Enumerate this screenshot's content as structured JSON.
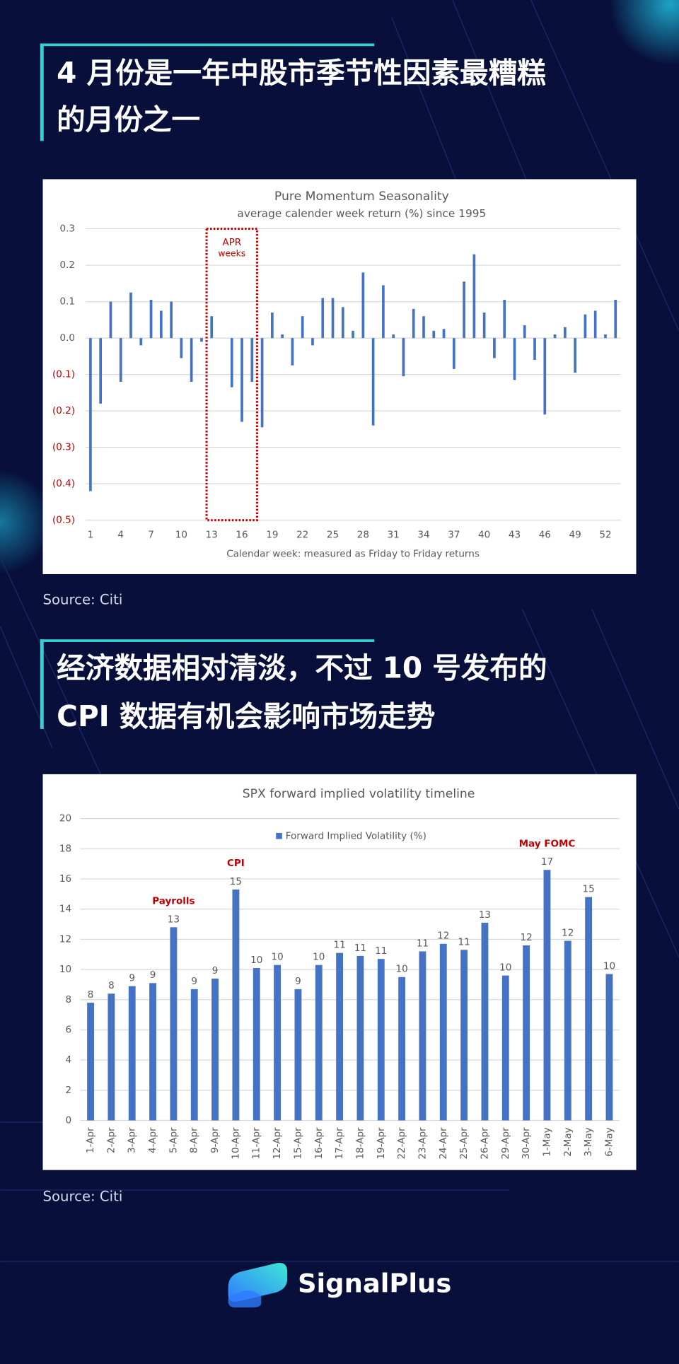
{
  "sections": [
    {
      "title": [
        "4 月份是一年中股市季节性因素最糟糕",
        "的月份之一"
      ],
      "source": "Source: Citi"
    },
    {
      "title": [
        "经济数据相对清淡，不过 10 号发布的",
        "CPI 数据有机会影响市场走势"
      ],
      "source": "Source: Citi"
    }
  ],
  "chart_data": [
    {
      "type": "bar",
      "title": "Pure Momentum Seasonality",
      "subtitle": "average calender week return (%) since 1995",
      "x_label": "Calendar week: measured as Friday to Friday returns",
      "categories": [
        1,
        null,
        null,
        4,
        null,
        null,
        7,
        null,
        null,
        10,
        null,
        null,
        13,
        null,
        null,
        16,
        null,
        null,
        19,
        null,
        null,
        22,
        null,
        null,
        25,
        null,
        null,
        28,
        null,
        null,
        31,
        null,
        null,
        34,
        null,
        null,
        37,
        null,
        null,
        40,
        null,
        null,
        43,
        null,
        null,
        46,
        null,
        null,
        49,
        null,
        null,
        52,
        null
      ],
      "values": [
        -0.42,
        -0.18,
        0.1,
        -0.12,
        0.125,
        -0.02,
        0.105,
        0.075,
        0.1,
        -0.055,
        -0.12,
        -0.01,
        0.06,
        0,
        -0.135,
        -0.23,
        -0.12,
        -0.245,
        0.07,
        0.01,
        -0.075,
        0.06,
        -0.02,
        0.11,
        0.11,
        0.085,
        0.02,
        0.18,
        -0.24,
        0.145,
        0.01,
        -0.105,
        0.08,
        0.06,
        0.02,
        0.025,
        -0.085,
        0.155,
        0.23,
        0.07,
        -0.055,
        0.105,
        -0.115,
        0.035,
        -0.06,
        -0.21,
        0.01,
        0.03,
        -0.095,
        0.065,
        0.075,
        0.01,
        0.105
      ],
      "color": "#4472c4",
      "ylim": [
        -0.5,
        0.3
      ],
      "yticks": [
        {
          "value": -0.5,
          "label": "(0.5)"
        },
        {
          "value": -0.4,
          "label": "(0.4)"
        },
        {
          "value": -0.3,
          "label": "(0.3)"
        },
        {
          "value": -0.2,
          "label": "(0.2)"
        },
        {
          "value": -0.1,
          "label": "(0.1)"
        },
        {
          "value": 0,
          "label": "0.0"
        },
        0.1,
        0.2,
        0.3
      ],
      "grid": true,
      "highlight": {
        "label": [
          "APR",
          "weeks"
        ],
        "from": 13,
        "to": 17,
        "color": "#c00000"
      }
    },
    {
      "type": "bar",
      "title": "SPX forward implied volatility timeline",
      "categories": [
        "1-Apr",
        "2-Apr",
        "3-Apr",
        "4-Apr",
        "5-Apr",
        "8-Apr",
        "9-Apr",
        "10-Apr",
        "11-Apr",
        "12-Apr",
        "15-Apr",
        "16-Apr",
        "17-Apr",
        "18-Apr",
        "19-Apr",
        "22-Apr",
        "23-Apr",
        "24-Apr",
        "25-Apr",
        "26-Apr",
        "29-Apr",
        "30-Apr",
        "1-May",
        "2-May",
        "3-May",
        "6-May"
      ],
      "series": [
        {
          "name": "Forward Implied Volatility (%)",
          "color": "#4472c4",
          "values": [
            7.8,
            8.4,
            8.9,
            9.1,
            12.8,
            8.7,
            9.4,
            15.3,
            10.1,
            10.3,
            8.7,
            10.3,
            11.1,
            10.9,
            10.7,
            9.5,
            11.2,
            11.7,
            11.3,
            13.1,
            9.6,
            11.6,
            16.6,
            11.9,
            14.8,
            9.7
          ],
          "value_labels": [
            "8",
            "8",
            "9",
            "9",
            "13",
            "9",
            "9",
            "15",
            "10",
            "10",
            "9",
            "10",
            "11",
            "11",
            "11",
            "10",
            "11",
            "12",
            "11",
            "13",
            "10",
            "12",
            "17",
            "12",
            "15",
            "10"
          ]
        }
      ],
      "ylim": [
        0,
        20
      ],
      "yticks": [
        0,
        2,
        4,
        6,
        8,
        10,
        12,
        14,
        16,
        18,
        20
      ],
      "grid": true,
      "legend": "top",
      "annotations": [
        {
          "text": "Payrolls",
          "category": "5-Apr"
        },
        {
          "text": "CPI",
          "category": "10-Apr"
        },
        {
          "text": "May FOMC",
          "category": "1-May"
        }
      ]
    }
  ],
  "logo": "SignalPlus"
}
